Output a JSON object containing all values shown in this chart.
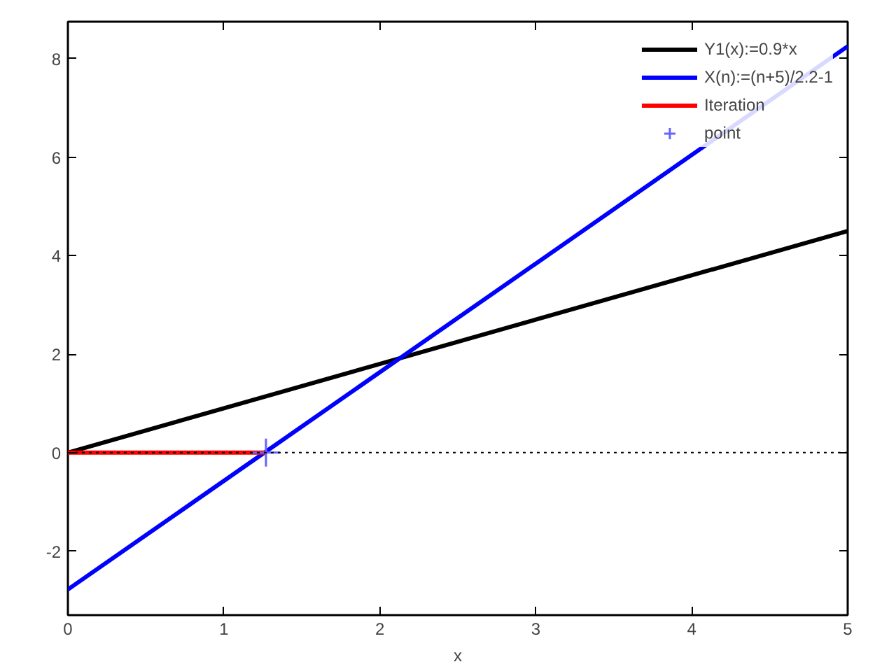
{
  "chart_data": {
    "type": "line",
    "xlabel": "x",
    "xlim": [
      0,
      5
    ],
    "ylim": [
      -3.3,
      8.75
    ],
    "xticks": [
      0,
      1,
      2,
      3,
      4,
      5
    ],
    "yticks": [
      -2,
      0,
      2,
      4,
      6,
      8
    ],
    "series": [
      {
        "name": "Y1(x):=0.9*x",
        "color": "#000000",
        "x": [
          0,
          5
        ],
        "values": [
          0,
          4.5
        ]
      },
      {
        "name": "X(n):=(n+5)/2.2-1",
        "color": "#0000ff",
        "x": [
          0,
          5
        ],
        "values": [
          -2.78,
          8.25
        ]
      },
      {
        "name": "Iteration",
        "color": "#ff0000",
        "x": [
          0,
          1.27
        ],
        "values": [
          0,
          0
        ]
      },
      {
        "name": "point",
        "type": "scatter",
        "marker": "cross",
        "color": "#6464ff",
        "x": [
          1.27
        ],
        "values": [
          0
        ]
      }
    ],
    "ref_lines": [
      {
        "axis": "y",
        "value": 0,
        "color": "#000000",
        "line_style": "dotted"
      }
    ],
    "grid": false,
    "legend": "top right"
  }
}
